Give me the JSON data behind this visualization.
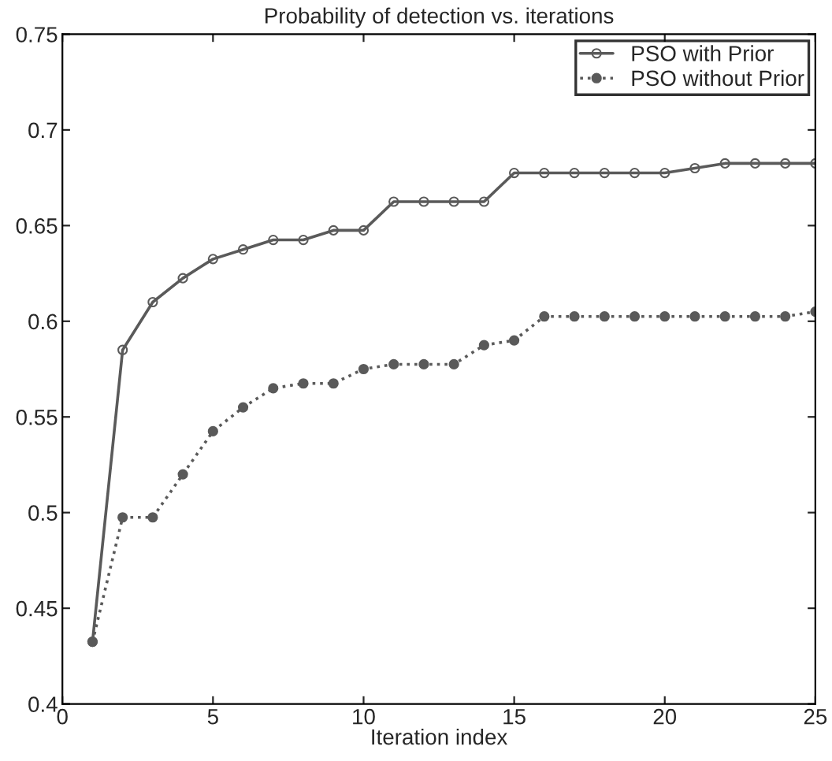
{
  "chart_data": {
    "type": "line",
    "title": "Probability of detection vs. iterations",
    "xlabel": "Iteration index",
    "x": [
      1,
      2,
      3,
      4,
      5,
      6,
      7,
      8,
      9,
      10,
      11,
      12,
      13,
      14,
      15,
      16,
      17,
      18,
      19,
      20,
      21,
      22,
      23,
      24,
      25
    ],
    "series": [
      {
        "name": "PSO with Prior",
        "color": "#5a5a5a",
        "marker": "circle",
        "line_style": "solid",
        "values": [
          0.4325,
          0.585,
          0.61,
          0.6225,
          0.6325,
          0.6375,
          0.6425,
          0.6425,
          0.6475,
          0.6475,
          0.6625,
          0.6625,
          0.6625,
          0.6625,
          0.6775,
          0.6775,
          0.6775,
          0.6775,
          0.6775,
          0.6775,
          0.68,
          0.6825,
          0.6825,
          0.6825,
          0.6825
        ]
      },
      {
        "name": "PSO without Prior",
        "color": "#5a5a5a",
        "marker": "circle",
        "line_style": "dotted",
        "values": [
          0.4325,
          0.4975,
          0.4975,
          0.52,
          0.5425,
          0.555,
          0.565,
          0.5675,
          0.5675,
          0.575,
          0.5775,
          0.5775,
          0.5775,
          0.5875,
          0.59,
          0.6025,
          0.6025,
          0.6025,
          0.6025,
          0.6025,
          0.6025,
          0.6025,
          0.6025,
          0.6025,
          0.605
        ]
      }
    ],
    "xlim": [
      0,
      25
    ],
    "xticks": [
      0,
      5,
      10,
      15,
      20,
      25
    ],
    "ylim": [
      0.4,
      0.75
    ],
    "yticks": [
      {
        "value": 0.4,
        "label": "0.4"
      },
      {
        "value": 0.45,
        "label": "0.45"
      },
      {
        "value": 0.5,
        "label": "0.5"
      },
      {
        "value": 0.55,
        "label": "0.55"
      },
      {
        "value": 0.6,
        "label": "0.6"
      },
      {
        "value": 0.65,
        "label": "0.65"
      },
      {
        "value": 0.7,
        "label": "0.7"
      },
      {
        "value": 0.75,
        "label": "0.75"
      }
    ],
    "grid": false,
    "legend": "top right"
  }
}
